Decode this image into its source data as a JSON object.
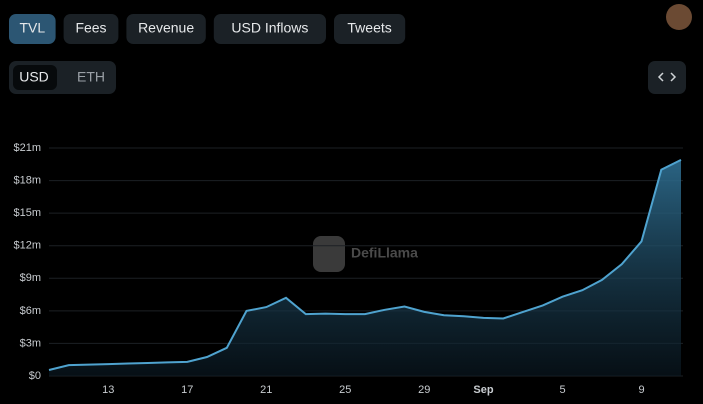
{
  "tabs": [
    "TVL",
    "Fees",
    "Revenue",
    "USD Inflows",
    "Tweets"
  ],
  "currency": [
    "USD",
    "ETH"
  ],
  "watermark": "DefiLlama",
  "chart_data": {
    "type": "area",
    "color": "#4fa3cf",
    "categories": [
      null,
      null,
      null,
      "13",
      null,
      null,
      null,
      "17",
      null,
      null,
      null,
      "21",
      null,
      null,
      null,
      "25",
      null,
      null,
      null,
      "29",
      null,
      null,
      "Sep",
      null,
      null,
      null,
      "5",
      null,
      null,
      null,
      "9",
      null,
      null
    ],
    "values": [
      0.55,
      1.0,
      1.05,
      1.1,
      1.15,
      1.2,
      1.25,
      1.3,
      1.75,
      2.6,
      6.0,
      6.35,
      7.2,
      5.7,
      5.75,
      5.7,
      5.7,
      6.1,
      6.4,
      5.9,
      5.6,
      5.5,
      5.35,
      5.3,
      5.9,
      6.5,
      7.3,
      7.9,
      8.85,
      10.3,
      12.4,
      19.0,
      19.9
    ],
    "ylim": [
      0,
      21
    ],
    "yticks": [
      {
        "value": 0,
        "label": "$0"
      },
      {
        "value": 3,
        "label": "$3m"
      },
      {
        "value": 6,
        "label": "$6m"
      },
      {
        "value": 9,
        "label": "$9m"
      },
      {
        "value": 12,
        "label": "$12m"
      },
      {
        "value": 15,
        "label": "$15m"
      },
      {
        "value": 18,
        "label": "$18m"
      },
      {
        "value": 21,
        "label": "$21m"
      }
    ],
    "grid": true
  }
}
